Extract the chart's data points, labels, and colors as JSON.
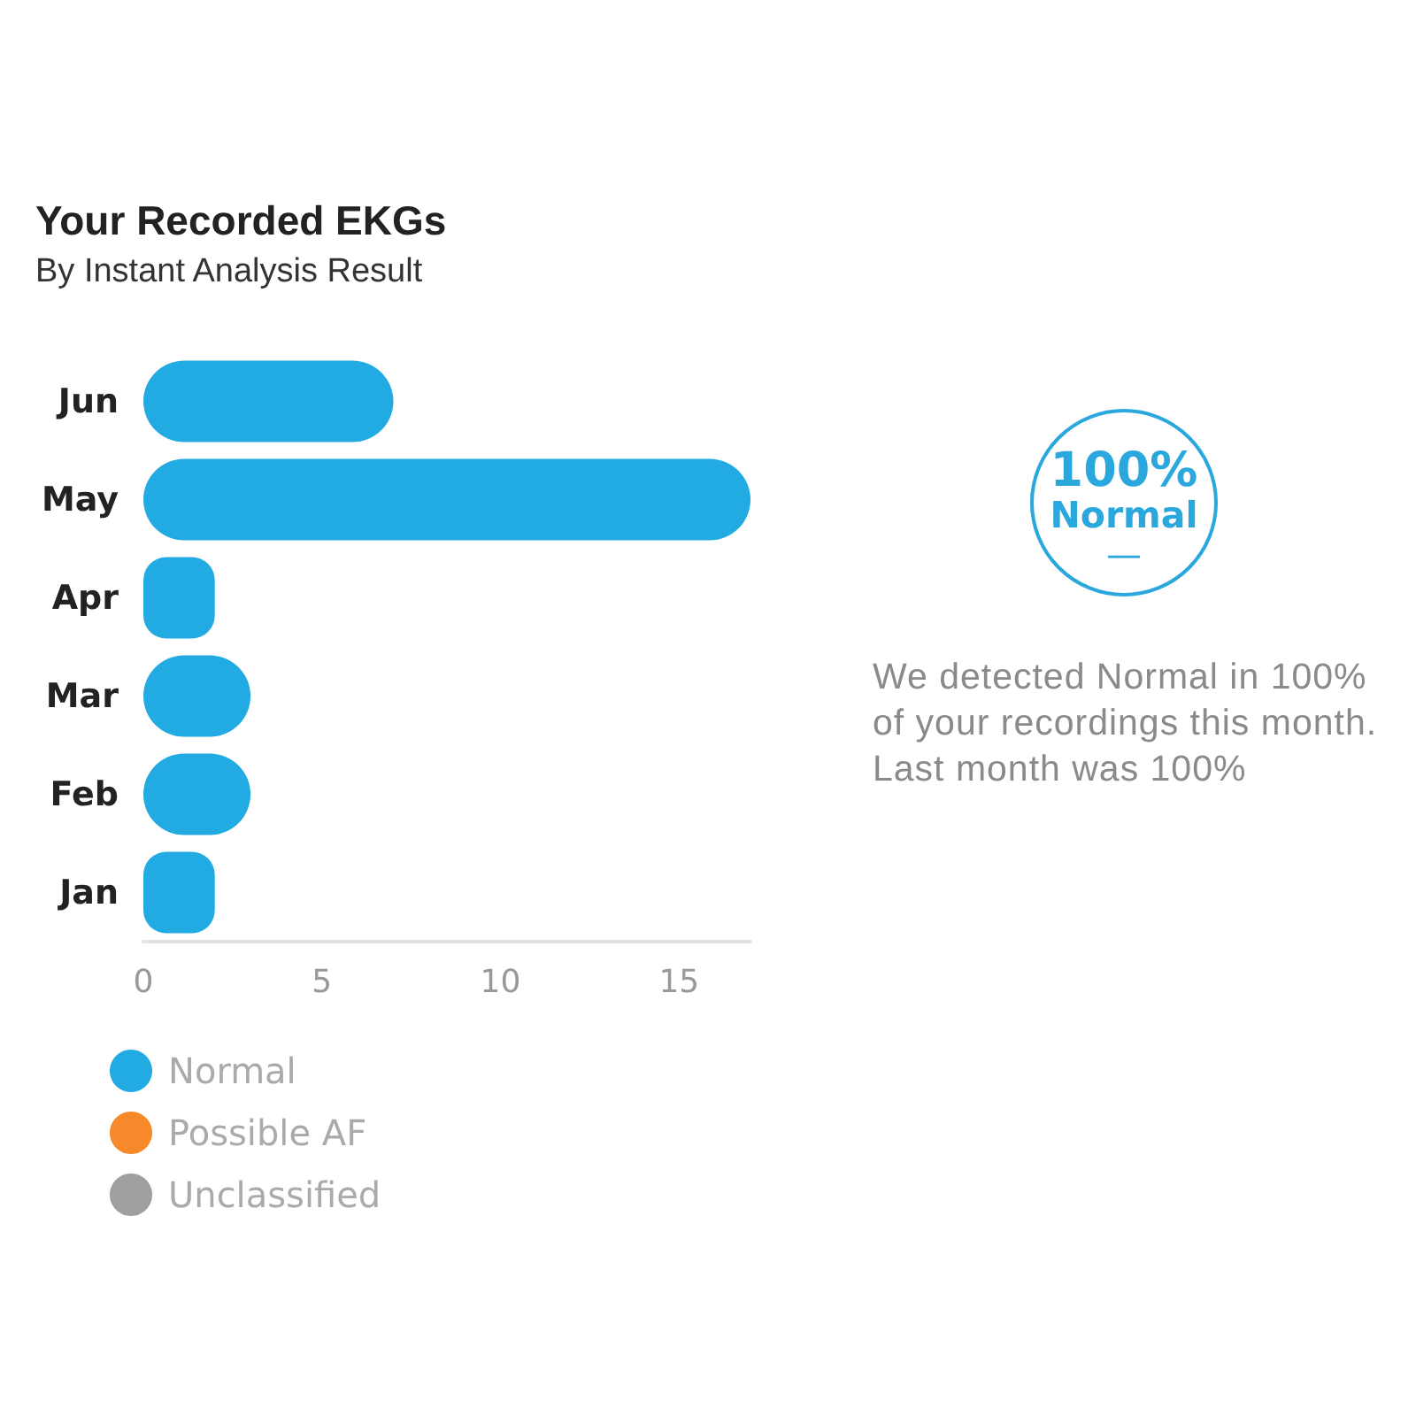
{
  "chart_data": [
    {
      "type": "bar",
      "title": "Your Recorded EKGs",
      "subtitle": "By Instant Analysis Result",
      "orientation": "horizontal",
      "stacked": true,
      "categories": [
        "Jun",
        "May",
        "Apr",
        "Mar",
        "Feb",
        "Jan"
      ],
      "series": [
        {
          "name": "Normal",
          "color": "#22aae2",
          "values": [
            7,
            17,
            2,
            3,
            3,
            2
          ]
        },
        {
          "name": "Possible AF",
          "color": "#f7892b",
          "values": [
            0,
            0,
            0,
            0,
            0,
            0
          ]
        },
        {
          "name": "Unclassified",
          "color": "#9f9f9f",
          "values": [
            0,
            0,
            0,
            0,
            0,
            0
          ]
        }
      ],
      "xlim": [
        0,
        17
      ],
      "xticks": [
        0,
        5,
        10,
        15
      ],
      "grid": false,
      "legend": "bottom left"
    },
    {
      "type": "other",
      "annotations": [
        "100%",
        "Normal",
        "—",
        "We detected Normal in 100% of your recordings this month.",
        "Last month was 100%"
      ]
    }
  ]
}
